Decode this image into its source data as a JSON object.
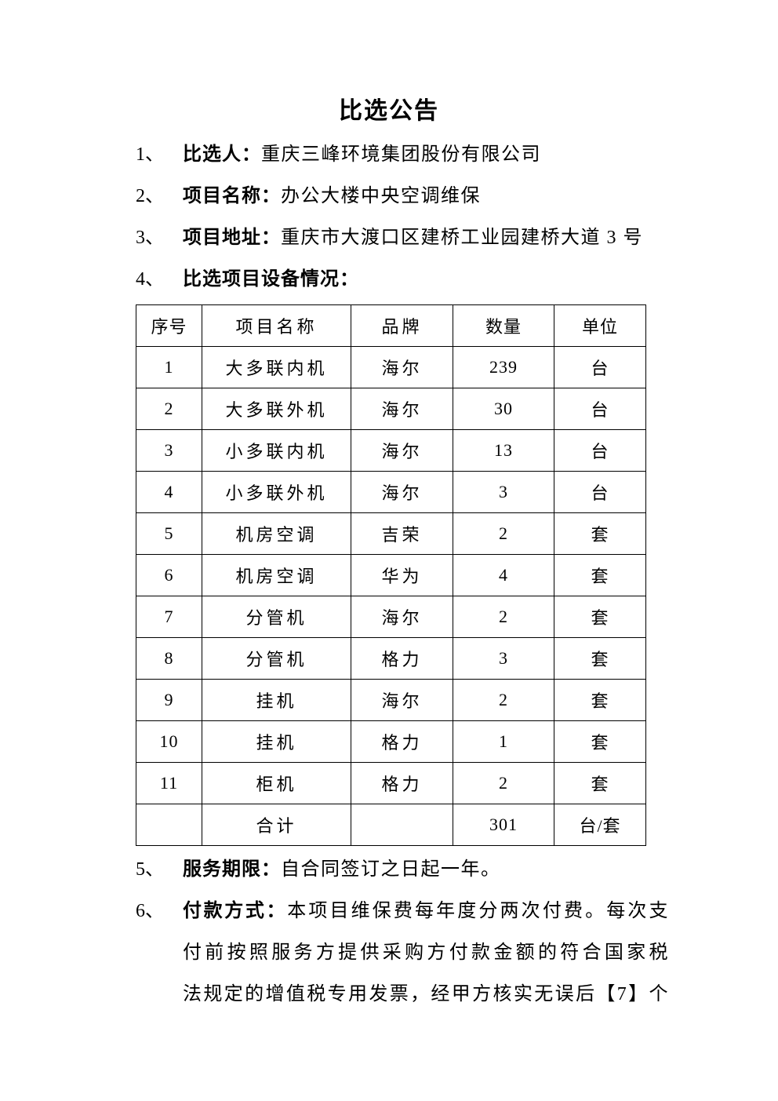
{
  "page_title": "比选公告",
  "items": [
    {
      "num": "1、",
      "label": "比选人：",
      "value": "重庆三峰环境集团股份有限公司"
    },
    {
      "num": "2、",
      "label": "项目名称：",
      "value": "办公大楼中央空调维保"
    },
    {
      "num": "3、",
      "label": "项目地址：",
      "value": "重庆市大渡口区建桥工业园建桥大道 3 号"
    },
    {
      "num": "4、",
      "label": "比选项目设备情况：",
      "value": ""
    }
  ],
  "table": {
    "headers": [
      "序号",
      "项目名称",
      "品牌",
      "数量",
      "单位"
    ],
    "rows": [
      [
        "1",
        "大多联内机",
        "海尔",
        "239",
        "台"
      ],
      [
        "2",
        "大多联外机",
        "海尔",
        "30",
        "台"
      ],
      [
        "3",
        "小多联内机",
        "海尔",
        "13",
        "台"
      ],
      [
        "4",
        "小多联外机",
        "海尔",
        "3",
        "台"
      ],
      [
        "5",
        "机房空调",
        "吉荣",
        "2",
        "套"
      ],
      [
        "6",
        "机房空调",
        "华为",
        "4",
        "套"
      ],
      [
        "7",
        "分管机",
        "海尔",
        "2",
        "套"
      ],
      [
        "8",
        "分管机",
        "格力",
        "3",
        "套"
      ],
      [
        "9",
        "挂机",
        "海尔",
        "2",
        "套"
      ],
      [
        "10",
        "挂机",
        "格力",
        "1",
        "套"
      ],
      [
        "11",
        "柜机",
        "格力",
        "2",
        "套"
      ],
      [
        "",
        "合计",
        "",
        "301",
        "台/套"
      ]
    ]
  },
  "item5": {
    "num": "5、",
    "label": "服务期限：",
    "value": "自合同签订之日起一年。"
  },
  "item6": {
    "num": "6、",
    "label": "付款方式：",
    "line1": "本项目维保费每年度分两次付费。每次支",
    "line2": "付前按照服务方提供采购方付款金额的符合国家税",
    "line3": "法规定的增值税专用发票，经甲方核实无误后【7】个"
  }
}
